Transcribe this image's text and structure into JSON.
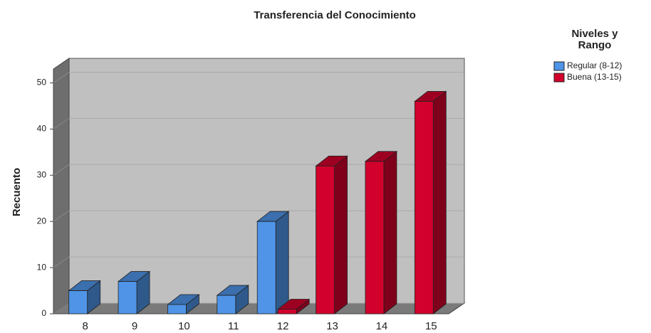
{
  "chart_data": {
    "type": "bar3d",
    "title": "Transferencia del Conocimiento",
    "y_label": "Recuento",
    "legend_title": "Niveles y Rango",
    "categories": [
      "8",
      "9",
      "10",
      "11",
      "12",
      "13",
      "14",
      "15"
    ],
    "series": [
      {
        "name": "Regular (8-12)",
        "color": "#4f94e6",
        "values": [
          5,
          7,
          2,
          4,
          20,
          null,
          null,
          null
        ]
      },
      {
        "name": "Buena (13-15)",
        "color": "#d2002c",
        "values": [
          null,
          null,
          null,
          null,
          1,
          32,
          33,
          46
        ]
      }
    ],
    "ylim": [
      0,
      53
    ],
    "yticks": [
      0,
      10,
      20,
      30,
      40,
      50
    ],
    "grid": true
  }
}
